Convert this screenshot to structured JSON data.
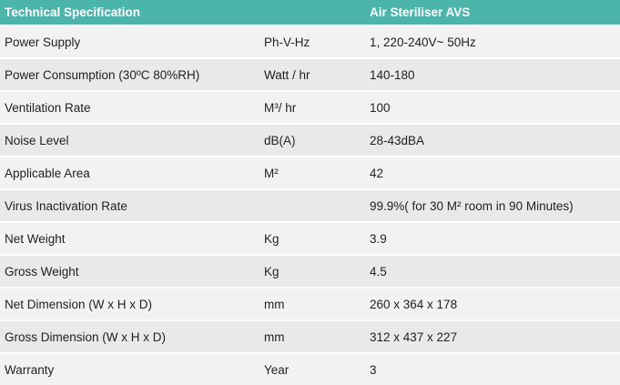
{
  "table": {
    "header": [
      "Technical Specification",
      null,
      "Air Steriliser AVS"
    ],
    "rows": [
      [
        "Power Supply",
        "Ph-V-Hz",
        "1, 220-240V~ 50Hz"
      ],
      [
        "Power Consumption (30ºC 80%RH)",
        "Watt / hr",
        "140-180"
      ],
      [
        "Ventilation Rate",
        "M³/ hr",
        "100"
      ],
      [
        "Noise Level",
        "dB(A)",
        "28-43dBA"
      ],
      [
        "Applicable Area",
        "M²",
        "42"
      ],
      [
        "Virus Inactivation Rate",
        null,
        "99.9%( for 30 M² room in 90 Minutes)"
      ],
      [
        "Net Weight",
        "Kg",
        "3.9"
      ],
      [
        "Gross Weight",
        "Kg",
        "4.5"
      ],
      [
        "Net Dimension (W x H x D)",
        "mm",
        "260 x 364 x 178"
      ],
      [
        "Gross Dimension (W x H x D)",
        "mm",
        "312 x 437 x 227"
      ],
      [
        "Warranty",
        "Year",
        "3"
      ]
    ]
  }
}
